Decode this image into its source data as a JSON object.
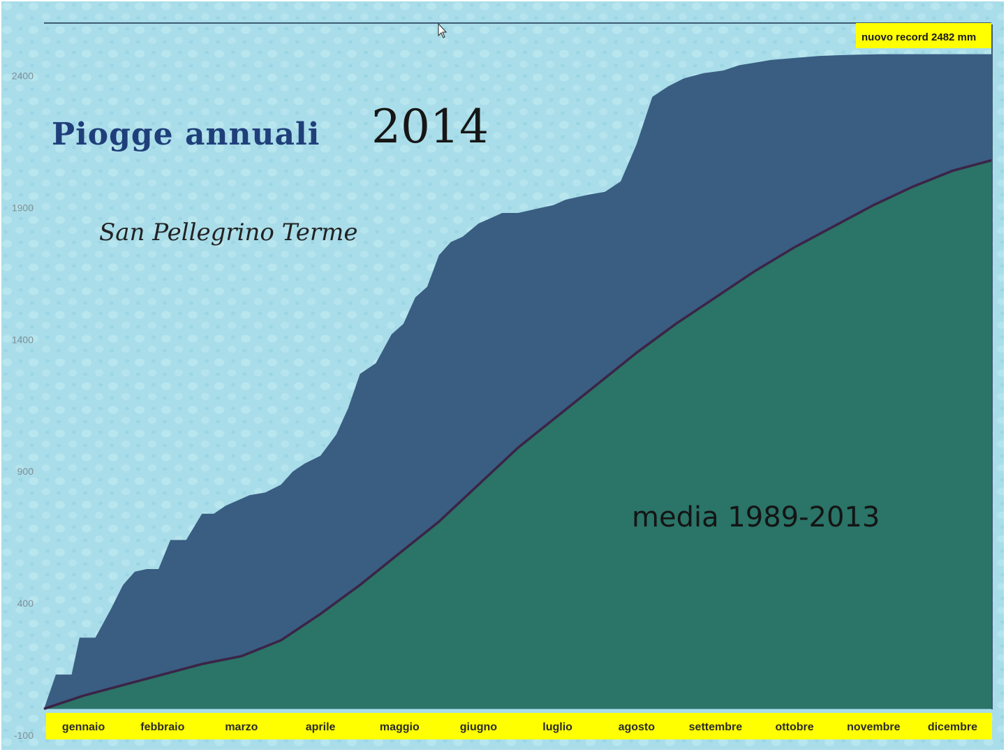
{
  "chart_data": {
    "type": "area",
    "title": "Piogge annuali",
    "year": "2014",
    "subtitle": "San Pellegrino Terme",
    "annotation": "nuovo record 2482 mm",
    "average_label": "media 1989-2013",
    "yticks": [
      -100,
      400,
      900,
      1400,
      1900,
      2400
    ],
    "ylim": [
      -100,
      2600
    ],
    "months": [
      "gennaio",
      "febbraio",
      "marzo",
      "aprile",
      "maggio",
      "giugno",
      "luglio",
      "agosto",
      "settembre",
      "ottobre",
      "novembre",
      "dicembre"
    ],
    "grid": false,
    "colors": {
      "background": "#a9dde9",
      "rain_2014": "#3a5d82",
      "average_area": "#2a7468",
      "average_line": "#3b2446",
      "label_band": "#ffff00"
    },
    "series": [
      {
        "name": "2014",
        "x": [
          0,
          0.15,
          0.35,
          0.45,
          0.65,
          0.85,
          1.0,
          1.15,
          1.3,
          1.45,
          1.6,
          1.8,
          2.0,
          2.15,
          2.3,
          2.45,
          2.6,
          2.8,
          3.0,
          3.15,
          3.3,
          3.5,
          3.7,
          3.85,
          4.0,
          4.2,
          4.4,
          4.55,
          4.7,
          4.85,
          5.0,
          5.15,
          5.3,
          5.5,
          5.65,
          5.8,
          6.0,
          6.15,
          6.3,
          6.45,
          6.6,
          6.75,
          6.9,
          7.1,
          7.3,
          7.5,
          7.7,
          7.9,
          8.1,
          8.35,
          8.6,
          8.8,
          9.0,
          9.2,
          9.4,
          9.6,
          9.8,
          10.05,
          10.3,
          10.45,
          10.6,
          10.8,
          11.0,
          11.2,
          11.4,
          11.6,
          11.8,
          12.0
        ],
        "values": [
          0,
          130,
          130,
          270,
          270,
          380,
          470,
          520,
          530,
          530,
          640,
          640,
          740,
          740,
          770,
          790,
          810,
          820,
          850,
          900,
          930,
          960,
          1040,
          1140,
          1270,
          1310,
          1420,
          1460,
          1560,
          1600,
          1720,
          1770,
          1790,
          1840,
          1860,
          1880,
          1880,
          1890,
          1900,
          1910,
          1930,
          1940,
          1950,
          1960,
          2000,
          2140,
          2320,
          2360,
          2390,
          2410,
          2420,
          2440,
          2450,
          2460,
          2465,
          2470,
          2475,
          2478,
          2480,
          2481,
          2482,
          2482,
          2482,
          2482,
          2482,
          2482,
          2482,
          2482
        ]
      },
      {
        "name": "media 1989-2013",
        "x": [
          0,
          0.5,
          1.0,
          1.5,
          2.0,
          2.5,
          3.0,
          3.5,
          4.0,
          4.5,
          5.0,
          5.5,
          6.0,
          6.5,
          7.0,
          7.5,
          8.0,
          8.5,
          9.0,
          9.5,
          10.0,
          10.5,
          11.0,
          11.5,
          12.0
        ],
        "values": [
          0,
          50,
          90,
          130,
          170,
          200,
          260,
          360,
          470,
          590,
          710,
          850,
          990,
          1110,
          1230,
          1350,
          1460,
          1560,
          1660,
          1750,
          1830,
          1910,
          1980,
          2040,
          2080
        ]
      }
    ]
  }
}
